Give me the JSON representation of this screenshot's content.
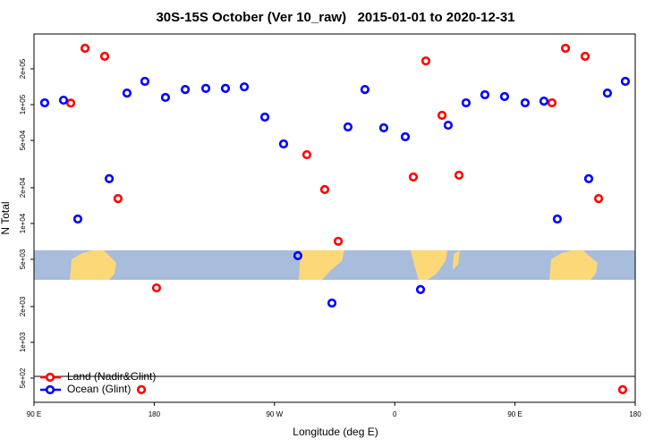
{
  "chart_data": {
    "type": "scatter",
    "title": "30S-15S October (Ver 10_raw)   2015-01-01 to 2020-12-31",
    "x_label": "Longitude (deg E)",
    "y_label": "N Total",
    "log_y": true,
    "legend": "bottomleft",
    "xlim": [
      90,
      540
    ],
    "xticks": [
      {
        "value": 90,
        "label": "90 E"
      },
      180,
      {
        "value": 270,
        "label": "90 W"
      },
      {
        "value": 360,
        "label": "0"
      },
      {
        "value": 450,
        "label": "90 E"
      },
      {
        "value": 540,
        "label": "180"
      }
    ],
    "ylim": [
      313,
      393000
    ],
    "yticks": [
      {
        "value": 500,
        "label": "5e+02"
      },
      {
        "value": 1000,
        "label": "1e+03"
      },
      {
        "value": 2000,
        "label": "2e+03"
      },
      {
        "value": 5000,
        "label": "5e+03"
      },
      {
        "value": 10000,
        "label": "1e+04"
      },
      {
        "value": 20000,
        "label": "2e+04"
      },
      {
        "value": 50000,
        "label": "5e+04"
      },
      {
        "value": 100000,
        "label": "1e+05"
      },
      {
        "value": 200000,
        "label": "2e+05"
      }
    ],
    "series": [
      {
        "name": "Land (Nadir&Glint)",
        "color": "#ff0000",
        "x": [
          117.5,
          128.2,
          142.9,
          152.9,
          181.7,
          170.4,
          294.2,
          307.6,
          317.7,
          373.9,
          383.3,
          395.4,
          408.1,
          477.7,
          487.8,
          502.5,
          512.6,
          530.6
        ],
        "values": [
          103000,
          298000,
          255000,
          16200,
          2870,
          400,
          37900,
          19300,
          7080,
          24600,
          233000,
          81300,
          25500,
          103500,
          298000,
          255000,
          16200,
          400
        ]
      },
      {
        "name": "Ocean (Glint)",
        "color": "#0000ff",
        "x": [
          98.0,
          112.1,
          122.8,
          146.3,
          159.6,
          173.0,
          188.4,
          203.2,
          218.6,
          233.3,
          247.4,
          262.8,
          276.8,
          287.5,
          313.0,
          325.0,
          337.7,
          351.8,
          367.9,
          379.3,
          400.0,
          413.4,
          427.5,
          442.2,
          457.6,
          471.7,
          481.7,
          505.2,
          519.2,
          532.6
        ],
        "values": [
          103500,
          109000,
          10900,
          23800,
          125000,
          157000,
          115000,
          134000,
          137000,
          137000,
          141000,
          78500,
          46700,
          5360,
          2140,
          64900,
          134000,
          63800,
          53600,
          2780,
          67100,
          103500,
          121000,
          117000,
          103500,
          107000,
          10900,
          23800,
          125000,
          157000
        ]
      }
    ]
  }
}
